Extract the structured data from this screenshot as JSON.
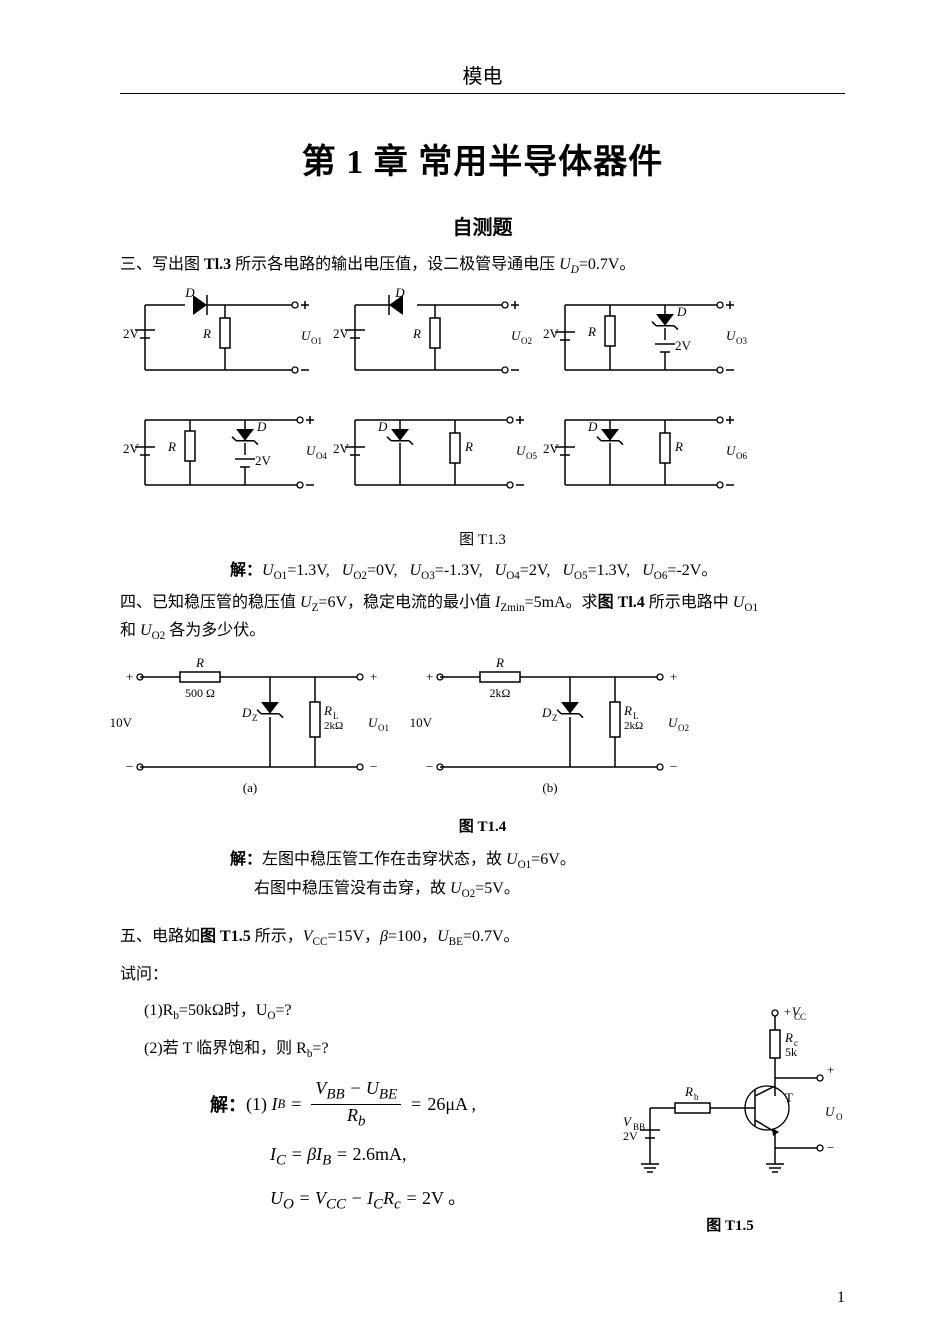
{
  "header": "模电",
  "chapter_title": "第 1 章  常用半导体器件",
  "section_title": "自测题",
  "page_number": "1",
  "q3": {
    "label": "三、",
    "text_a": "写出图 ",
    "bold_ref": "Tl.3",
    "text_b": " 所示各电路的输出电压值，设二极管导通电压 ",
    "ud": "U",
    "ud_sub": "D",
    "ud_val": "=0.7V。",
    "caption": "图 T1.3",
    "solution_label": "解：",
    "solution": "U_{O1}=1.3V,   U_{O2}=0V,   U_{O3}=-1.3V,   U_{O4}=2V,   U_{O5}=1.3V,   U_{O6}=-2V。",
    "sol_parts": [
      {
        "u": "U",
        "s": "O1",
        "v": "=1.3V,"
      },
      {
        "u": "U",
        "s": "O2",
        "v": "=0V,"
      },
      {
        "u": "U",
        "s": "O3",
        "v": "=-1.3V,"
      },
      {
        "u": "U",
        "s": "O4",
        "v": "=2V,"
      },
      {
        "u": "U",
        "s": "O5",
        "v": "=1.3V,"
      },
      {
        "u": "U",
        "s": "O6",
        "v": "=-2V。"
      }
    ]
  },
  "q4": {
    "label": "四、",
    "text_a": "已知稳压管的稳压值 ",
    "uz": "U",
    "uz_sub": "Z",
    "uz_val": "=6V",
    "text_b": "，稳定电流的最小值 ",
    "iz": "I",
    "iz_sub": "Zmin",
    "iz_val": "=5mA",
    "text_c": "。求",
    "bold_ref": "图 Tl.4",
    "text_d": " 所示电路中 ",
    "uo1": "U",
    "uo1_sub": "O1",
    "text_e": "和 ",
    "uo2": "U",
    "uo2_sub": "O2",
    "text_f": " 各为多少伏。",
    "caption": "图 T1.4",
    "solution_label": "解：",
    "sol_line1_a": "左图中稳压管工作在击穿状态，故 ",
    "sol_line1_u": "U",
    "sol_line1_sub": "O1",
    "sol_line1_v": "=6V。",
    "sol_line2_a": "右图中稳压管没有击穿，故 ",
    "sol_line2_u": "U",
    "sol_line2_sub": "O2",
    "sol_line2_v": "=5V。"
  },
  "q5": {
    "label": "五、",
    "text_a": "电路如",
    "bold_ref": "图 T1.5",
    "text_b": " 所示，",
    "vcc": "V",
    "vcc_sub": "CC",
    "vcc_val": "=15V",
    "text_c": "，",
    "beta": "β",
    "beta_val": "=100",
    "text_d": "，",
    "ube": "U",
    "ube_sub": "BE",
    "ube_val": "=0.7V。",
    "prompt": "试问：",
    "sub1": "(1)R",
    "sub1_s": "b",
    "sub1_v": "=50kΩ时，U",
    "sub1_s2": "O",
    "sub1_end": "=?",
    "sub2": "(2)若 T 临界饱和，则 R",
    "sub2_s": "b",
    "sub2_end": "=?",
    "solution_label": "解：",
    "eq1_lhs": "(1) I",
    "eq1_sub": "B",
    "eq1_eq": " = ",
    "eq1_num": "V_{BB} − U_{BE}",
    "eq1_den": "R_{b}",
    "eq1_rhs": " = 26μA ,",
    "eq2": "I_{C} = βI_{B} = 2.6mA,",
    "eq3": "U_{O} = V_{CC} − I_{C}R_{c} = 2V 。",
    "caption": "图 T1.5"
  },
  "fig_t13": {
    "type": "circuit-grid",
    "stroke": "#000000",
    "cells": [
      {
        "src_label": "2V",
        "d_label": "D",
        "d_dir": "right",
        "r_label": "R",
        "out_label": "U",
        "out_sub": "O1"
      },
      {
        "src_label": "2V",
        "d_label": "D",
        "d_dir": "left",
        "r_label": "R",
        "out_label": "U",
        "out_sub": "O2"
      },
      {
        "src_label": "2V",
        "left_r": "R",
        "d_label": "D",
        "d_zener": true,
        "d_src": "2V",
        "out_label": "U",
        "out_sub": "O3"
      },
      {
        "src_label": "2V",
        "left_r": "R",
        "d_label": "D",
        "d_zener": true,
        "d_src": "2V",
        "out_label": "U",
        "out_sub": "O4"
      },
      {
        "src_label": "2V",
        "left_d": "D",
        "d_zener": true,
        "r_label": "R",
        "out_label": "U",
        "out_sub": "O5"
      },
      {
        "src_label": "2V",
        "left_d": "D",
        "d_zener": true,
        "r_label": "R",
        "out_label": "U",
        "out_sub": "O6"
      }
    ]
  },
  "fig_t14": {
    "type": "zener-pair",
    "stroke": "#000000",
    "a": {
      "vin": "10V",
      "r": "R",
      "r_val": "500 Ω",
      "dz": "D",
      "dz_sub": "Z",
      "rl": "R",
      "rl_sub": "L",
      "rl_val": "2kΩ",
      "out": "U",
      "out_sub": "O1",
      "cap": "(a)"
    },
    "b": {
      "vin": "10V",
      "r": "R",
      "r_val": "2kΩ",
      "dz": "D",
      "dz_sub": "Z",
      "rl": "R",
      "rl_sub": "L",
      "rl_val": "2kΩ",
      "out": "U",
      "out_sub": "O2",
      "cap": "(b)"
    }
  },
  "fig_t15": {
    "type": "bjt",
    "stroke": "#000000",
    "vcc_label": "+V",
    "vcc_sub": "CC",
    "rc_label": "R",
    "rc_sub": "c",
    "rc_val": "5k",
    "rb_label": "R",
    "rb_sub": "b",
    "vbb_label": "V",
    "vbb_sub": "BB",
    "vbb_val": "2V",
    "t_label": "T",
    "out": "U",
    "out_sub": "O"
  }
}
